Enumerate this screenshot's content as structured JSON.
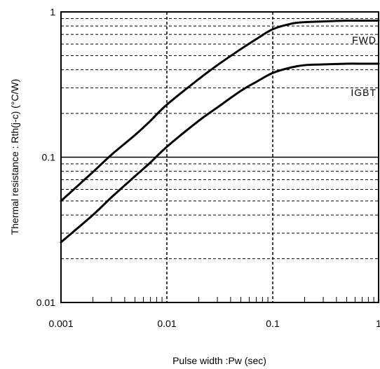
{
  "chart_data": {
    "type": "line",
    "title": "",
    "xlabel": "Pulse width :Pw (sec)",
    "ylabel": "Thermal resistance : Rth(j-c)  (°C/W)",
    "x_scale": "log",
    "y_scale": "log",
    "xlim": [
      0.001,
      1
    ],
    "ylim": [
      0.01,
      1
    ],
    "grid": true,
    "x_ticks": [
      0.001,
      0.01,
      0.1,
      1
    ],
    "x_tick_labels": [
      "0.001",
      "0.01",
      "0.1",
      "1"
    ],
    "y_ticks": [
      0.01,
      0.1,
      1
    ],
    "y_tick_labels": [
      "0.01",
      "0.1",
      "1"
    ],
    "series": [
      {
        "name": "FWD",
        "x": [
          0.001,
          0.002,
          0.003,
          0.005,
          0.007,
          0.01,
          0.02,
          0.03,
          0.05,
          0.07,
          0.1,
          0.15,
          0.2,
          0.3,
          0.5,
          0.7,
          1
        ],
        "y": [
          0.05,
          0.079,
          0.104,
          0.142,
          0.178,
          0.23,
          0.345,
          0.43,
          0.555,
          0.65,
          0.76,
          0.83,
          0.85,
          0.86,
          0.87,
          0.87,
          0.87
        ]
      },
      {
        "name": "IGBT",
        "x": [
          0.001,
          0.002,
          0.003,
          0.005,
          0.007,
          0.01,
          0.02,
          0.03,
          0.05,
          0.07,
          0.1,
          0.15,
          0.2,
          0.3,
          0.5,
          0.7,
          1
        ],
        "y": [
          0.026,
          0.04,
          0.053,
          0.074,
          0.092,
          0.118,
          0.178,
          0.22,
          0.286,
          0.33,
          0.38,
          0.415,
          0.43,
          0.435,
          0.44,
          0.44,
          0.44
        ]
      }
    ]
  }
}
